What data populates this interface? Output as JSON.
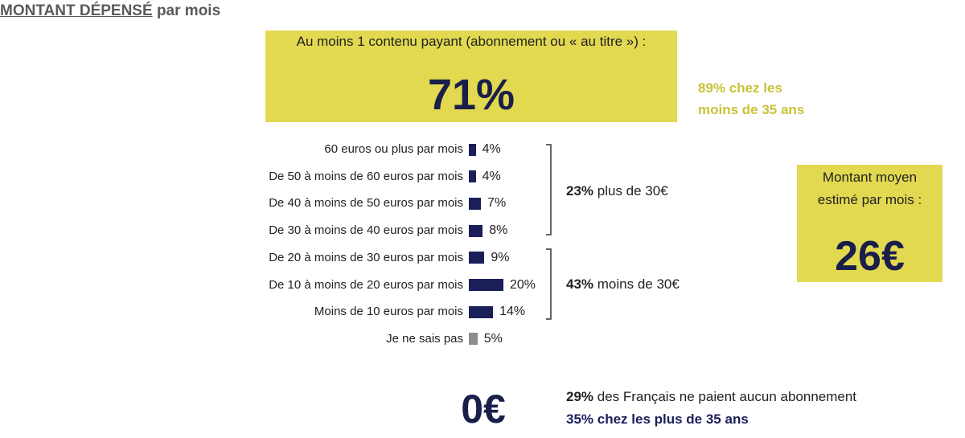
{
  "title": {
    "underlined": "MONTANT DÉPENSÉ",
    "rest": " par mois"
  },
  "paid_box": {
    "label": "Au moins 1 contenu payant (abonnement ou « au titre ») :",
    "value": "71%",
    "color": "#e2d951"
  },
  "young_note": {
    "line1": "89% chez les",
    "line2": "moins de 35 ans"
  },
  "chart_data": {
    "type": "bar",
    "orientation": "horizontal",
    "categories": [
      "60 euros ou plus par mois",
      "De 50 à moins de 60 euros par mois",
      "De 40 à moins de 50 euros par mois",
      "De 30 à moins de 40 euros par mois",
      "De 20 à moins de 30 euros par mois",
      "De 10 à moins de 20 euros par mois",
      "Moins de 10 euros par mois",
      "Je ne sais pas"
    ],
    "values": [
      4,
      4,
      7,
      8,
      9,
      20,
      14,
      5
    ],
    "value_labels": [
      "4%",
      "4%",
      "7%",
      "8%",
      "9%",
      "20%",
      "14%",
      "5%"
    ],
    "colors": [
      "#1a1f5a",
      "#1a1f5a",
      "#1a1f5a",
      "#1a1f5a",
      "#1a1f5a",
      "#1a1f5a",
      "#1a1f5a",
      "#8c8c8c"
    ],
    "xlim": [
      0,
      20
    ]
  },
  "groups": {
    "over30": {
      "pct": "23%",
      "text": " plus de 30€"
    },
    "under30": {
      "pct": "43%",
      "text": " moins de 30€"
    }
  },
  "avg_box": {
    "label_line1": "Montant moyen",
    "label_line2": "estimé par mois :",
    "value": "26€"
  },
  "zero_section": {
    "value": "0€",
    "line1_pct": "29%",
    "line1_text": " des Français ne paient aucun abonnement",
    "line2": "35% chez les plus de 35 ans"
  }
}
